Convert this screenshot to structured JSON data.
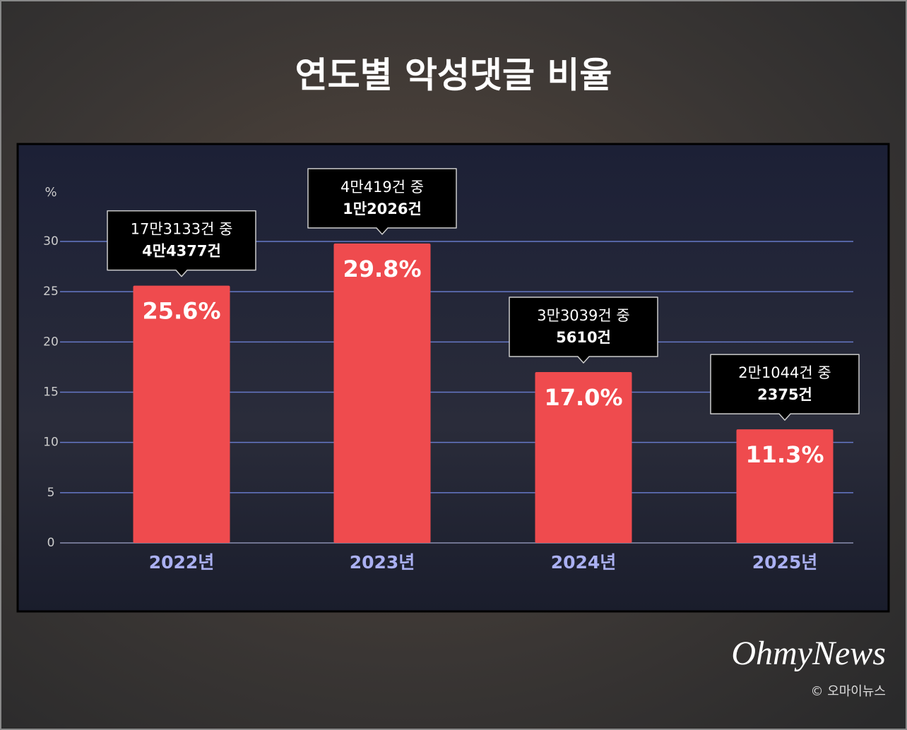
{
  "chart_data": {
    "type": "bar",
    "title": "연도별 악성댓글 비율",
    "y_label": "%",
    "categories": [
      "2022년",
      "2023년",
      "2024년",
      "2025년"
    ],
    "values": [
      25.6,
      29.8,
      17.0,
      11.3
    ],
    "value_labels": [
      "25.6%",
      "29.8%",
      "17.0%",
      "11.3%"
    ],
    "callouts": [
      [
        "17만3133건 중",
        "4만4377건"
      ],
      [
        "4만419건 중",
        "1만2026건"
      ],
      [
        "3만3039건 중",
        "5610건"
      ],
      [
        "2만1044건 중",
        "2375건"
      ]
    ],
    "color": "#ef4b4e",
    "ylim": [
      0,
      30
    ],
    "yticks": [
      0,
      5,
      10,
      15,
      20,
      25,
      30
    ],
    "grid": true
  },
  "branding": {
    "logo": "OhmyNews",
    "credit": "© 오마이뉴스"
  }
}
